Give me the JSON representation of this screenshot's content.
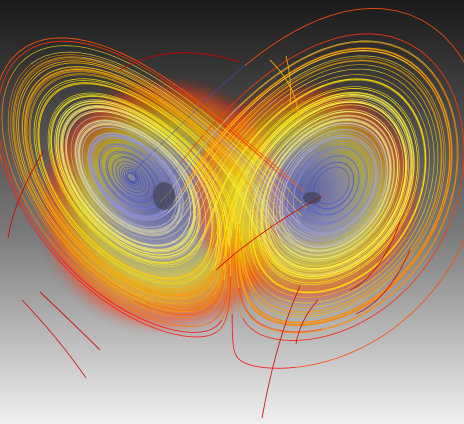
{
  "scene": {
    "subject": "",
    "background_gradient": {
      "top": "#1a1a1a",
      "mid": "#7a7a7a",
      "bottom": "#f0f0f0"
    },
    "palette": {
      "outer": "#ff1010",
      "outer_dark": "#d40000",
      "orange": "#ff7a00",
      "amber": "#ffb000",
      "yellow": "#ffee00",
      "pale_yellow": "#f6f07a",
      "lavender": "#9c9cd8",
      "blue": "#4a55c8",
      "deep_blue": "#2f3ab8"
    }
  }
}
